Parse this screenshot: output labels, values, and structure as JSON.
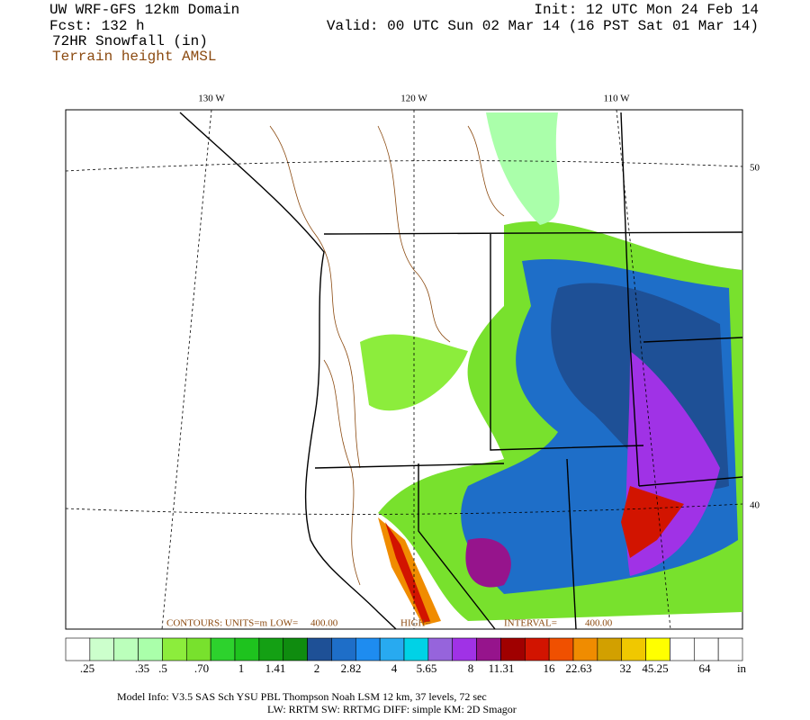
{
  "header": {
    "title": "UW WRF-GFS 12km Domain",
    "forecast": "Fcst:  132 h",
    "field": "72HR Snowfall (in)",
    "overlay": "Terrain height AMSL",
    "init": "Init: 12 UTC Mon 24 Feb 14",
    "valid": "Valid: 00 UTC Sun 02 Mar 14 (16 PST Sat 01 Mar 14)"
  },
  "map": {
    "lon_labels": [
      "130 W",
      "120 W",
      "110 W"
    ],
    "lat_labels": [
      "50",
      "40"
    ],
    "contour_info": [
      "CONTOURS: UNITS=m",
      "LOW=",
      "400.00",
      "HIGH=",
      "INTERVAL=",
      "400.00"
    ]
  },
  "colorbar": {
    "labels": [
      ".25",
      ".35",
      ".5",
      ".70",
      "1",
      "1.41",
      "2",
      "2.82",
      "4",
      "5.65",
      "8",
      "11.31",
      "16",
      "22.63",
      "32",
      "45.25",
      "64"
    ],
    "units": "in",
    "colors": [
      "#ffffff",
      "#ccffcc",
      "#bbffbb",
      "#aaffaa",
      "#8ced3c",
      "#78e12d",
      "#2dd22d",
      "#1ec31e",
      "#14a014",
      "#0f8c0f",
      "#1e5096",
      "#1e6ec8",
      "#1e8cf0",
      "#28aaf0",
      "#00d2e6",
      "#9664dc",
      "#a032e6",
      "#96148c",
      "#a00000",
      "#d21400",
      "#f05000",
      "#f08c00",
      "#d2a000",
      "#f0c800",
      "#ffff00",
      "#ffffff",
      "#ffffff",
      "#ffffff"
    ]
  },
  "footer": {
    "line1": "Model Info: V3.5    SAS Sch YSU PBL  Thompson    Noah LSM  12 km,   37 levels,   72 sec",
    "line2": "LW: RRTM SW: RRTMG   DIFF: simple KM: 2D Smagor"
  }
}
